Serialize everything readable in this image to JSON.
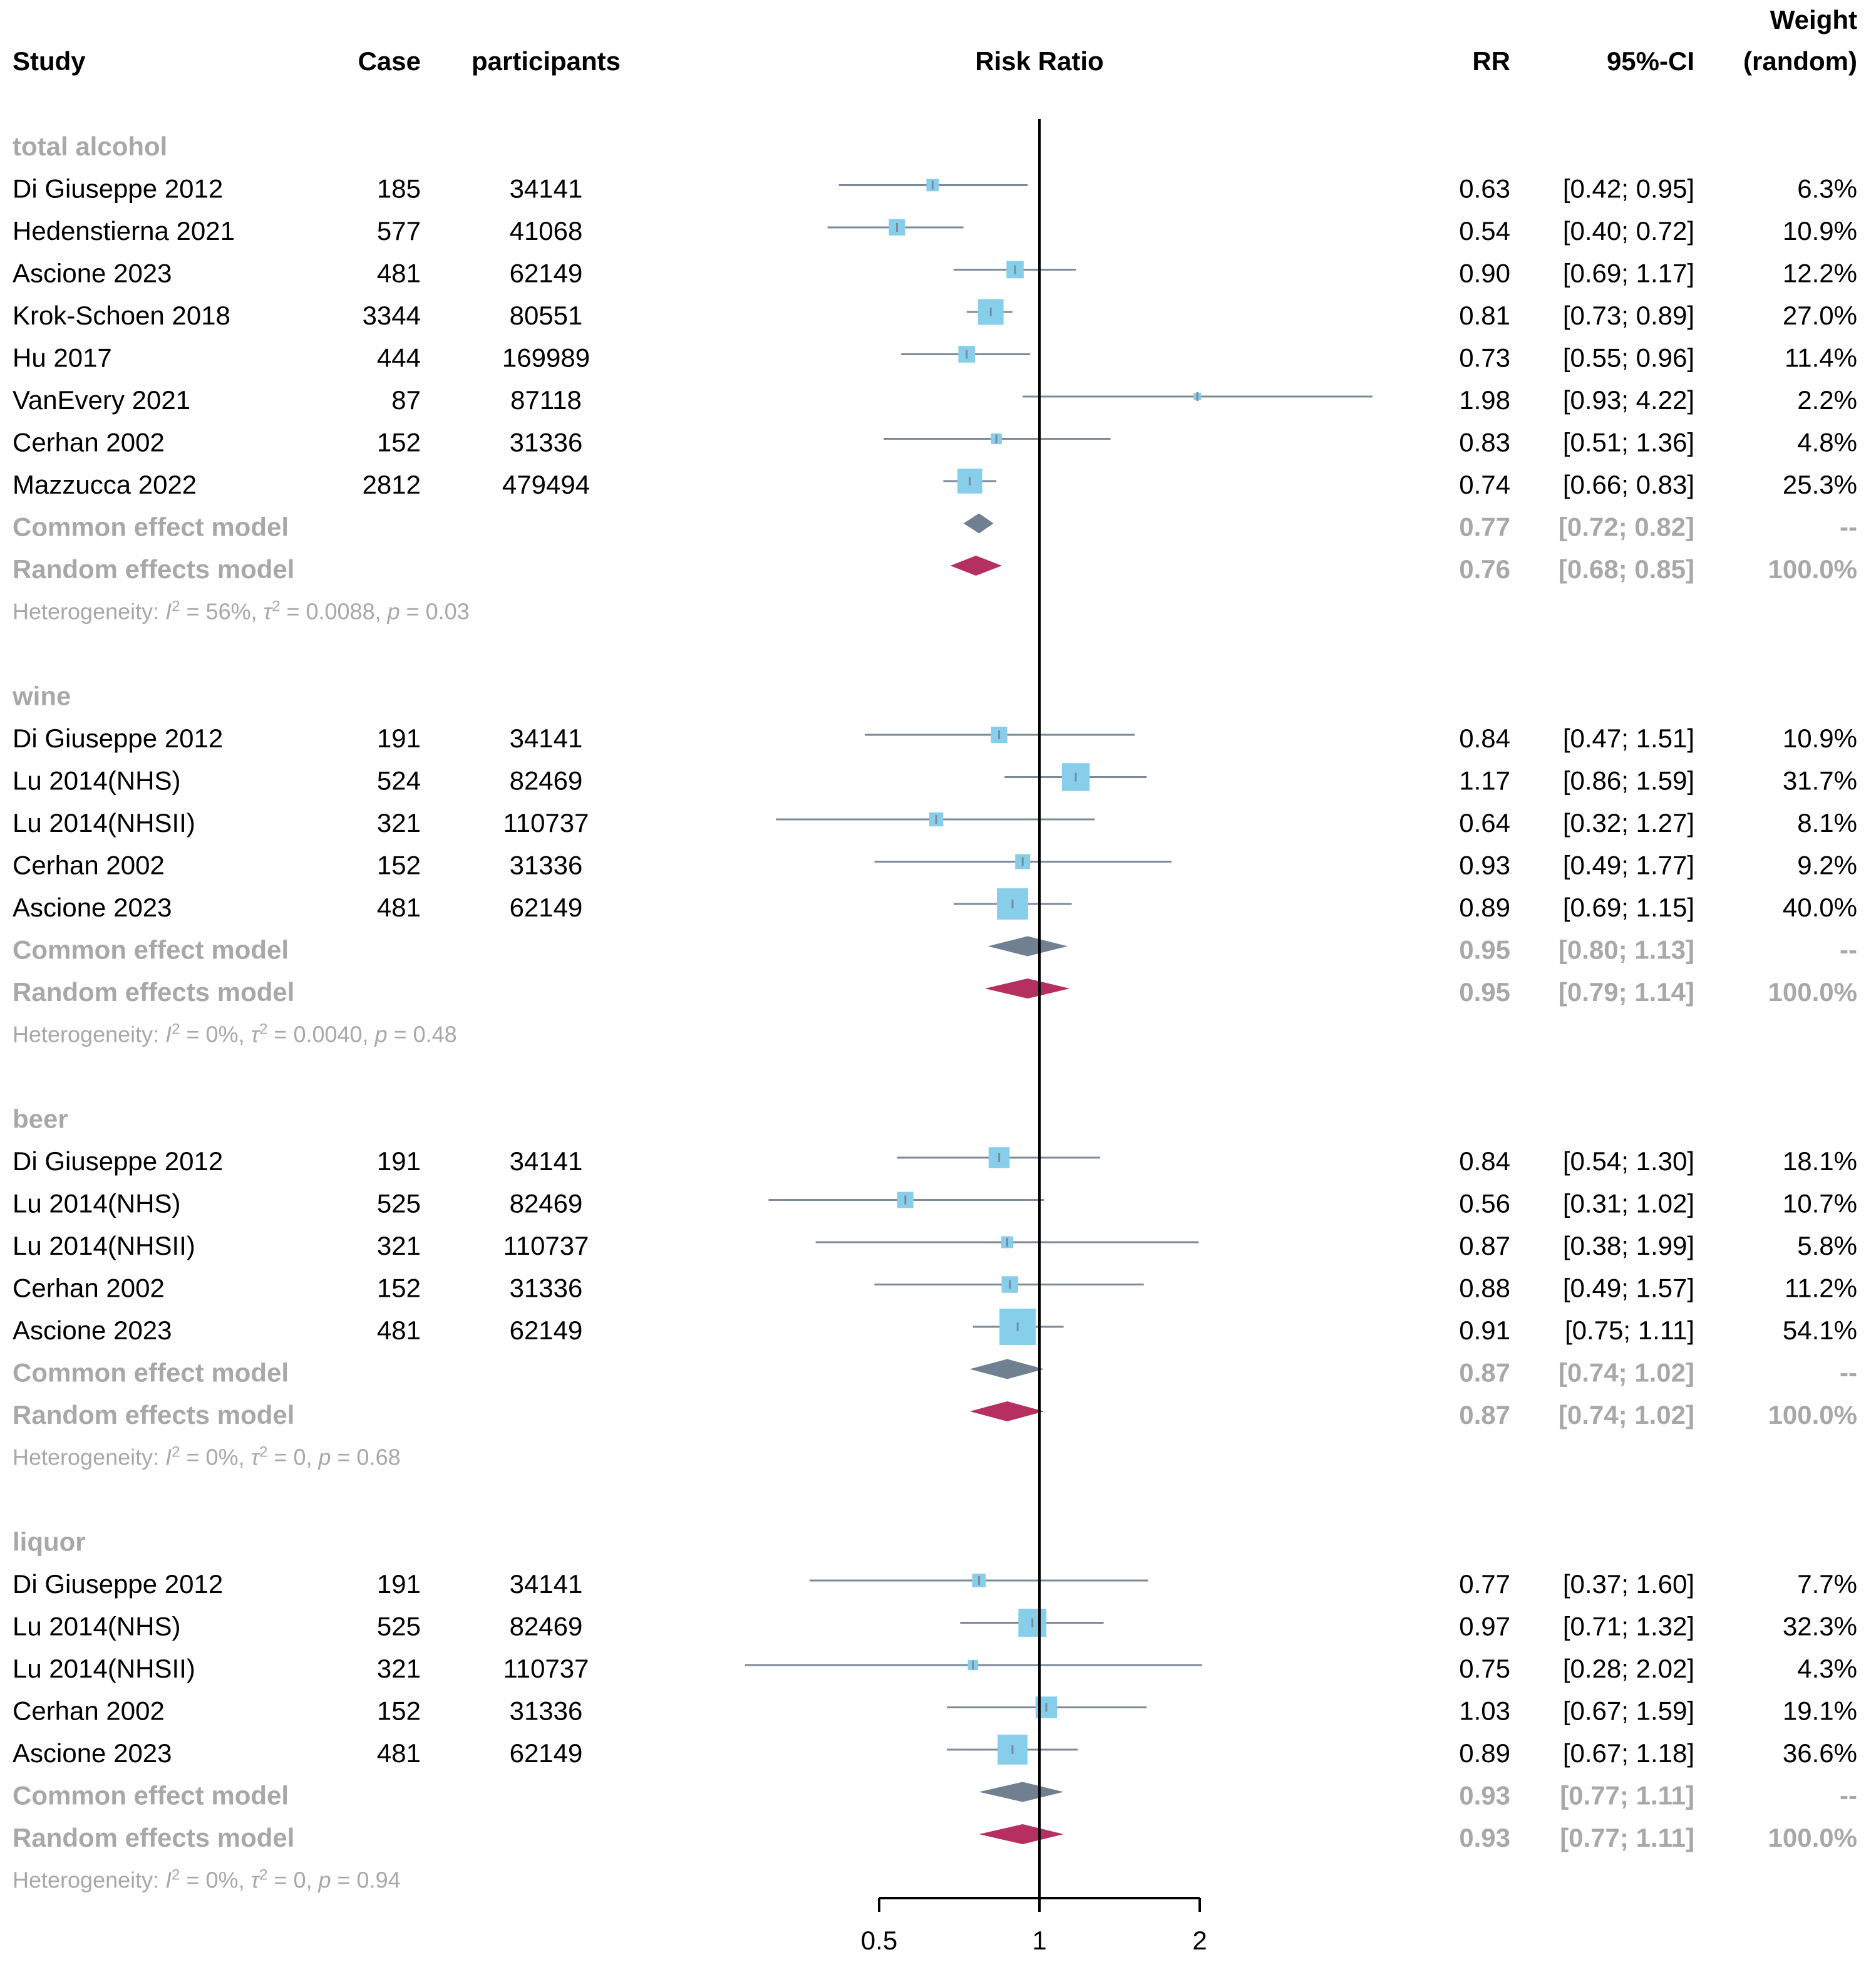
{
  "chart_data": {
    "type": "forest",
    "title": "",
    "xlabel": "Risk Ratio",
    "scale": "log",
    "xlim": [
      0.5,
      2
    ],
    "x_ticks": [
      "0.5",
      "1",
      "2"
    ],
    "x_tick_values": [
      0.5,
      1,
      2
    ],
    "reference_line": 1,
    "columns": {
      "study": "Study",
      "case": "Case",
      "participants": "participants",
      "plot": "Risk Ratio",
      "rr": "RR",
      "ci": "95%-CI",
      "weight_top": "Weight",
      "weight_bottom": "(random)"
    },
    "colors": {
      "study_box": "#87ceeb",
      "ci_line": "#7b8a99",
      "common_diamond": "#708090",
      "random_diamond": "#b5305e",
      "muted_text": "#a8a8a8"
    },
    "groups": [
      {
        "name": "total alcohol",
        "studies": [
          {
            "study": "Di Giuseppe 2012",
            "case": "185",
            "participants": "34141",
            "rr": 0.63,
            "lo": 0.42,
            "hi": 0.95,
            "rr_text": "0.63",
            "ci_text": "[0.42; 0.95]",
            "weight_text": "6.3%",
            "weight": 6.3
          },
          {
            "study": "Hedenstierna 2021",
            "case": "577",
            "participants": "41068",
            "rr": 0.54,
            "lo": 0.4,
            "hi": 0.72,
            "rr_text": "0.54",
            "ci_text": "[0.40; 0.72]",
            "weight_text": "10.9%",
            "weight": 10.9
          },
          {
            "study": "Ascione 2023",
            "case": "481",
            "participants": "62149",
            "rr": 0.9,
            "lo": 0.69,
            "hi": 1.17,
            "rr_text": "0.90",
            "ci_text": "[0.69; 1.17]",
            "weight_text": "12.2%",
            "weight": 12.2
          },
          {
            "study": "Krok-Schoen 2018",
            "case": "3344",
            "participants": "80551",
            "rr": 0.81,
            "lo": 0.73,
            "hi": 0.89,
            "rr_text": "0.81",
            "ci_text": "[0.73; 0.89]",
            "weight_text": "27.0%",
            "weight": 27.0
          },
          {
            "study": "Hu 2017",
            "case": "444",
            "participants": "169989",
            "rr": 0.73,
            "lo": 0.55,
            "hi": 0.96,
            "rr_text": "0.73",
            "ci_text": "[0.55; 0.96]",
            "weight_text": "11.4%",
            "weight": 11.4
          },
          {
            "study": "VanEvery 2021",
            "case": "87",
            "participants": "87118",
            "rr": 1.98,
            "lo": 0.93,
            "hi": 4.22,
            "rr_text": "1.98",
            "ci_text": "[0.93; 4.22]",
            "weight_text": "2.2%",
            "weight": 2.2
          },
          {
            "study": "Cerhan 2002",
            "case": "152",
            "participants": "31336",
            "rr": 0.83,
            "lo": 0.51,
            "hi": 1.36,
            "rr_text": "0.83",
            "ci_text": "[0.51; 1.36]",
            "weight_text": "4.8%",
            "weight": 4.8
          },
          {
            "study": "Mazzucca 2022",
            "case": "2812",
            "participants": "479494",
            "rr": 0.74,
            "lo": 0.66,
            "hi": 0.83,
            "rr_text": "0.74",
            "ci_text": "[0.66; 0.83]",
            "weight_text": "25.3%",
            "weight": 25.3
          }
        ],
        "common": {
          "label": "Common effect model",
          "rr": 0.77,
          "lo": 0.72,
          "hi": 0.82,
          "rr_text": "0.77",
          "ci_text": "[0.72; 0.82]",
          "weight_text": "--"
        },
        "random": {
          "label": "Random effects model",
          "rr": 0.76,
          "lo": 0.68,
          "hi": 0.85,
          "rr_text": "0.76",
          "ci_text": "[0.68; 0.85]",
          "weight_text": "100.0%"
        },
        "heterogeneity": {
          "label": "Heterogeneity:",
          "i2": "56%",
          "tau2": "0.0088",
          "p": "0.03"
        }
      },
      {
        "name": "wine",
        "studies": [
          {
            "study": "Di Giuseppe 2012",
            "case": "191",
            "participants": "34141",
            "rr": 0.84,
            "lo": 0.47,
            "hi": 1.51,
            "rr_text": "0.84",
            "ci_text": "[0.47; 1.51]",
            "weight_text": "10.9%",
            "weight": 10.9
          },
          {
            "study": "Lu 2014(NHS)",
            "case": "524",
            "participants": "82469",
            "rr": 1.17,
            "lo": 0.86,
            "hi": 1.59,
            "rr_text": "1.17",
            "ci_text": "[0.86; 1.59]",
            "weight_text": "31.7%",
            "weight": 31.7
          },
          {
            "study": "Lu 2014(NHSII)",
            "case": "321",
            "participants": "110737",
            "rr": 0.64,
            "lo": 0.32,
            "hi": 1.27,
            "rr_text": "0.64",
            "ci_text": "[0.32; 1.27]",
            "weight_text": "8.1%",
            "weight": 8.1
          },
          {
            "study": "Cerhan 2002",
            "case": "152",
            "participants": "31336",
            "rr": 0.93,
            "lo": 0.49,
            "hi": 1.77,
            "rr_text": "0.93",
            "ci_text": "[0.49; 1.77]",
            "weight_text": "9.2%",
            "weight": 9.2
          },
          {
            "study": "Ascione 2023",
            "case": "481",
            "participants": "62149",
            "rr": 0.89,
            "lo": 0.69,
            "hi": 1.15,
            "rr_text": "0.89",
            "ci_text": "[0.69; 1.15]",
            "weight_text": "40.0%",
            "weight": 40.0
          }
        ],
        "common": {
          "label": "Common effect model",
          "rr": 0.95,
          "lo": 0.8,
          "hi": 1.13,
          "rr_text": "0.95",
          "ci_text": "[0.80; 1.13]",
          "weight_text": "--"
        },
        "random": {
          "label": "Random effects model",
          "rr": 0.95,
          "lo": 0.79,
          "hi": 1.14,
          "rr_text": "0.95",
          "ci_text": "[0.79; 1.14]",
          "weight_text": "100.0%"
        },
        "heterogeneity": {
          "label": "Heterogeneity:",
          "i2": "0%",
          "tau2": "0.0040",
          "p": "0.48"
        }
      },
      {
        "name": "beer",
        "studies": [
          {
            "study": "Di Giuseppe 2012",
            "case": "191",
            "participants": "34141",
            "rr": 0.84,
            "lo": 0.54,
            "hi": 1.3,
            "rr_text": "0.84",
            "ci_text": "[0.54; 1.30]",
            "weight_text": "18.1%",
            "weight": 18.1
          },
          {
            "study": "Lu 2014(NHS)",
            "case": "525",
            "participants": "82469",
            "rr": 0.56,
            "lo": 0.31,
            "hi": 1.02,
            "rr_text": "0.56",
            "ci_text": "[0.31; 1.02]",
            "weight_text": "10.7%",
            "weight": 10.7
          },
          {
            "study": "Lu 2014(NHSII)",
            "case": "321",
            "participants": "110737",
            "rr": 0.87,
            "lo": 0.38,
            "hi": 1.99,
            "rr_text": "0.87",
            "ci_text": "[0.38; 1.99]",
            "weight_text": "5.8%",
            "weight": 5.8
          },
          {
            "study": "Cerhan 2002",
            "case": "152",
            "participants": "31336",
            "rr": 0.88,
            "lo": 0.49,
            "hi": 1.57,
            "rr_text": "0.88",
            "ci_text": "[0.49; 1.57]",
            "weight_text": "11.2%",
            "weight": 11.2
          },
          {
            "study": "Ascione 2023",
            "case": "481",
            "participants": "62149",
            "rr": 0.91,
            "lo": 0.75,
            "hi": 1.11,
            "rr_text": "0.91",
            "ci_text": "[0.75; 1.11]",
            "weight_text": "54.1%",
            "weight": 54.1
          }
        ],
        "common": {
          "label": "Common effect model",
          "rr": 0.87,
          "lo": 0.74,
          "hi": 1.02,
          "rr_text": "0.87",
          "ci_text": "[0.74; 1.02]",
          "weight_text": "--"
        },
        "random": {
          "label": "Random effects model",
          "rr": 0.87,
          "lo": 0.74,
          "hi": 1.02,
          "rr_text": "0.87",
          "ci_text": "[0.74; 1.02]",
          "weight_text": "100.0%"
        },
        "heterogeneity": {
          "label": "Heterogeneity:",
          "i2": "0%",
          "tau2": "0",
          "p": "0.68"
        }
      },
      {
        "name": "liquor",
        "studies": [
          {
            "study": "Di Giuseppe 2012",
            "case": "191",
            "participants": "34141",
            "rr": 0.77,
            "lo": 0.37,
            "hi": 1.6,
            "rr_text": "0.77",
            "ci_text": "[0.37; 1.60]",
            "weight_text": "7.7%",
            "weight": 7.7
          },
          {
            "study": "Lu 2014(NHS)",
            "case": "525",
            "participants": "82469",
            "rr": 0.97,
            "lo": 0.71,
            "hi": 1.32,
            "rr_text": "0.97",
            "ci_text": "[0.71; 1.32]",
            "weight_text": "32.3%",
            "weight": 32.3
          },
          {
            "study": "Lu 2014(NHSII)",
            "case": "321",
            "participants": "110737",
            "rr": 0.75,
            "lo": 0.28,
            "hi": 2.02,
            "rr_text": "0.75",
            "ci_text": "[0.28; 2.02]",
            "weight_text": "4.3%",
            "weight": 4.3
          },
          {
            "study": "Cerhan 2002",
            "case": "152",
            "participants": "31336",
            "rr": 1.03,
            "lo": 0.67,
            "hi": 1.59,
            "rr_text": "1.03",
            "ci_text": "[0.67; 1.59]",
            "weight_text": "19.1%",
            "weight": 19.1
          },
          {
            "study": "Ascione 2023",
            "case": "481",
            "participants": "62149",
            "rr": 0.89,
            "lo": 0.67,
            "hi": 1.18,
            "rr_text": "0.89",
            "ci_text": "[0.67; 1.18]",
            "weight_text": "36.6%",
            "weight": 36.6
          }
        ],
        "common": {
          "label": "Common effect model",
          "rr": 0.93,
          "lo": 0.77,
          "hi": 1.11,
          "rr_text": "0.93",
          "ci_text": "[0.77; 1.11]",
          "weight_text": "--"
        },
        "random": {
          "label": "Random effects model",
          "rr": 0.93,
          "lo": 0.77,
          "hi": 1.11,
          "rr_text": "0.93",
          "ci_text": "[0.77; 1.11]",
          "weight_text": "100.0%"
        },
        "heterogeneity": {
          "label": "Heterogeneity:",
          "i2": "0%",
          "tau2": "0",
          "p": "0.94"
        }
      }
    ]
  }
}
